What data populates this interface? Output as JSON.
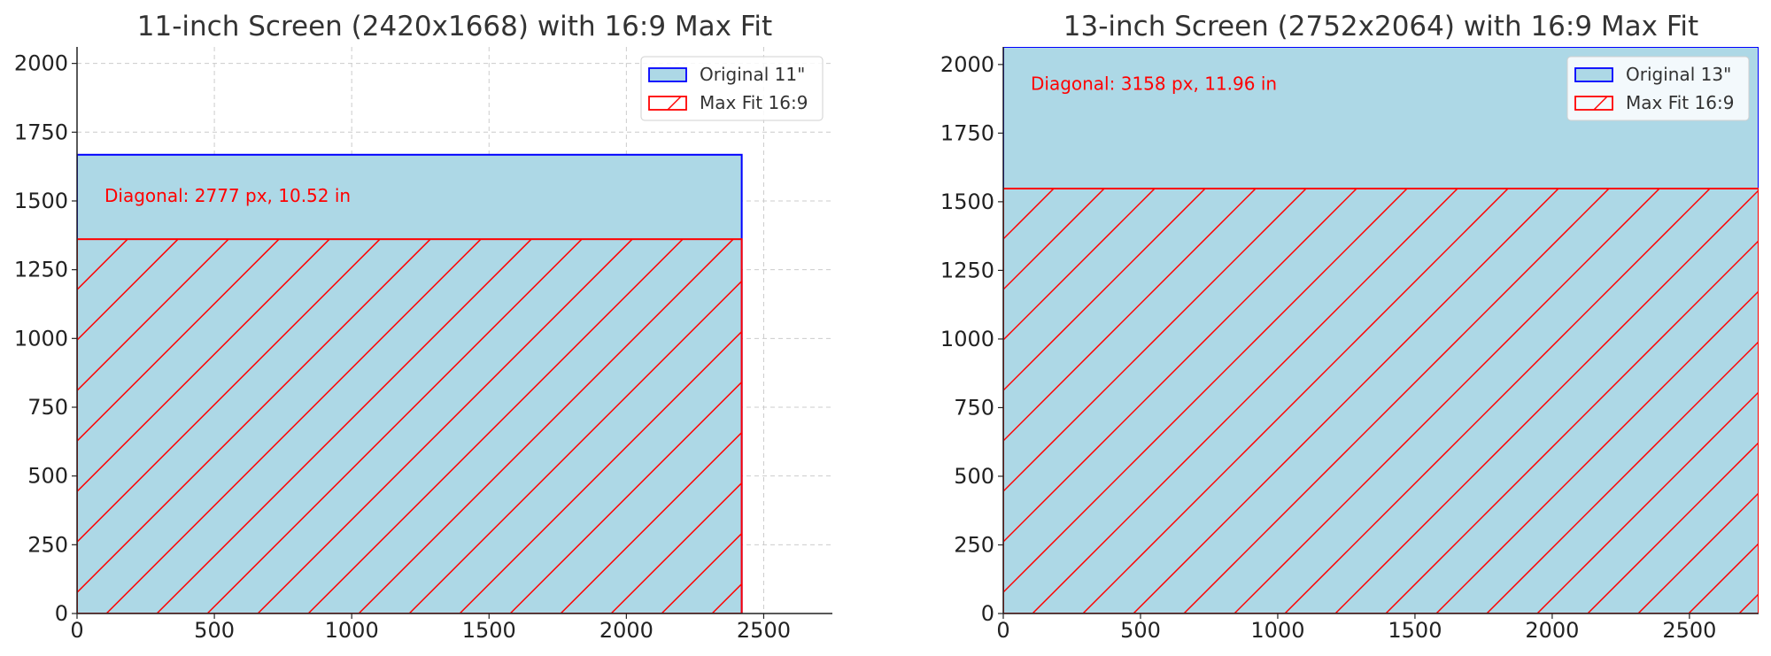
{
  "chart_data": [
    {
      "type": "bar",
      "title": "11-inch Screen (2420x1668) with 16:9 Max Fit",
      "xlabel": "",
      "ylabel": "",
      "xlim": [
        0,
        2750
      ],
      "ylim": [
        0,
        2060
      ],
      "xticks": [
        0,
        500,
        1000,
        1500,
        2000,
        2500
      ],
      "yticks": [
        0,
        250,
        500,
        750,
        1000,
        1250,
        1500,
        1750,
        2000
      ],
      "grid": true,
      "legend_position": "top-right",
      "rects": [
        {
          "name": "Original 11\"",
          "x": 0,
          "y": 0,
          "width": 2420,
          "height": 1668,
          "fill": "#add8e6",
          "edge": "#0000ff",
          "hatch": false
        },
        {
          "name": "Max Fit 16:9",
          "x": 0,
          "y": 0,
          "width": 2420,
          "height": 1361,
          "fill": "none",
          "edge": "#ff0000",
          "hatch": true
        }
      ],
      "annotation": {
        "text": "Diagonal: 2777 px, 10.52 in",
        "x": 100,
        "y": 1520,
        "color": "#ff0000"
      }
    },
    {
      "type": "bar",
      "title": "13-inch Screen (2752x2064) with 16:9 Max Fit",
      "xlabel": "",
      "ylabel": "",
      "xlim": [
        0,
        2752
      ],
      "ylim": [
        0,
        2064
      ],
      "xticks": [
        0,
        500,
        1000,
        1500,
        2000,
        2500
      ],
      "yticks": [
        0,
        250,
        500,
        750,
        1000,
        1250,
        1500,
        1750,
        2000
      ],
      "grid": true,
      "legend_position": "top-right",
      "rects": [
        {
          "name": "Original 13\"",
          "x": 0,
          "y": 0,
          "width": 2752,
          "height": 2064,
          "fill": "#add8e6",
          "edge": "#0000ff",
          "hatch": false
        },
        {
          "name": "Max Fit 16:9",
          "x": 0,
          "y": 0,
          "width": 2752,
          "height": 1548,
          "fill": "none",
          "edge": "#ff0000",
          "hatch": true
        }
      ],
      "annotation": {
        "text": "Diagonal: 3158 px, 11.96 in",
        "x": 100,
        "y": 1930,
        "color": "#ff0000"
      }
    }
  ]
}
